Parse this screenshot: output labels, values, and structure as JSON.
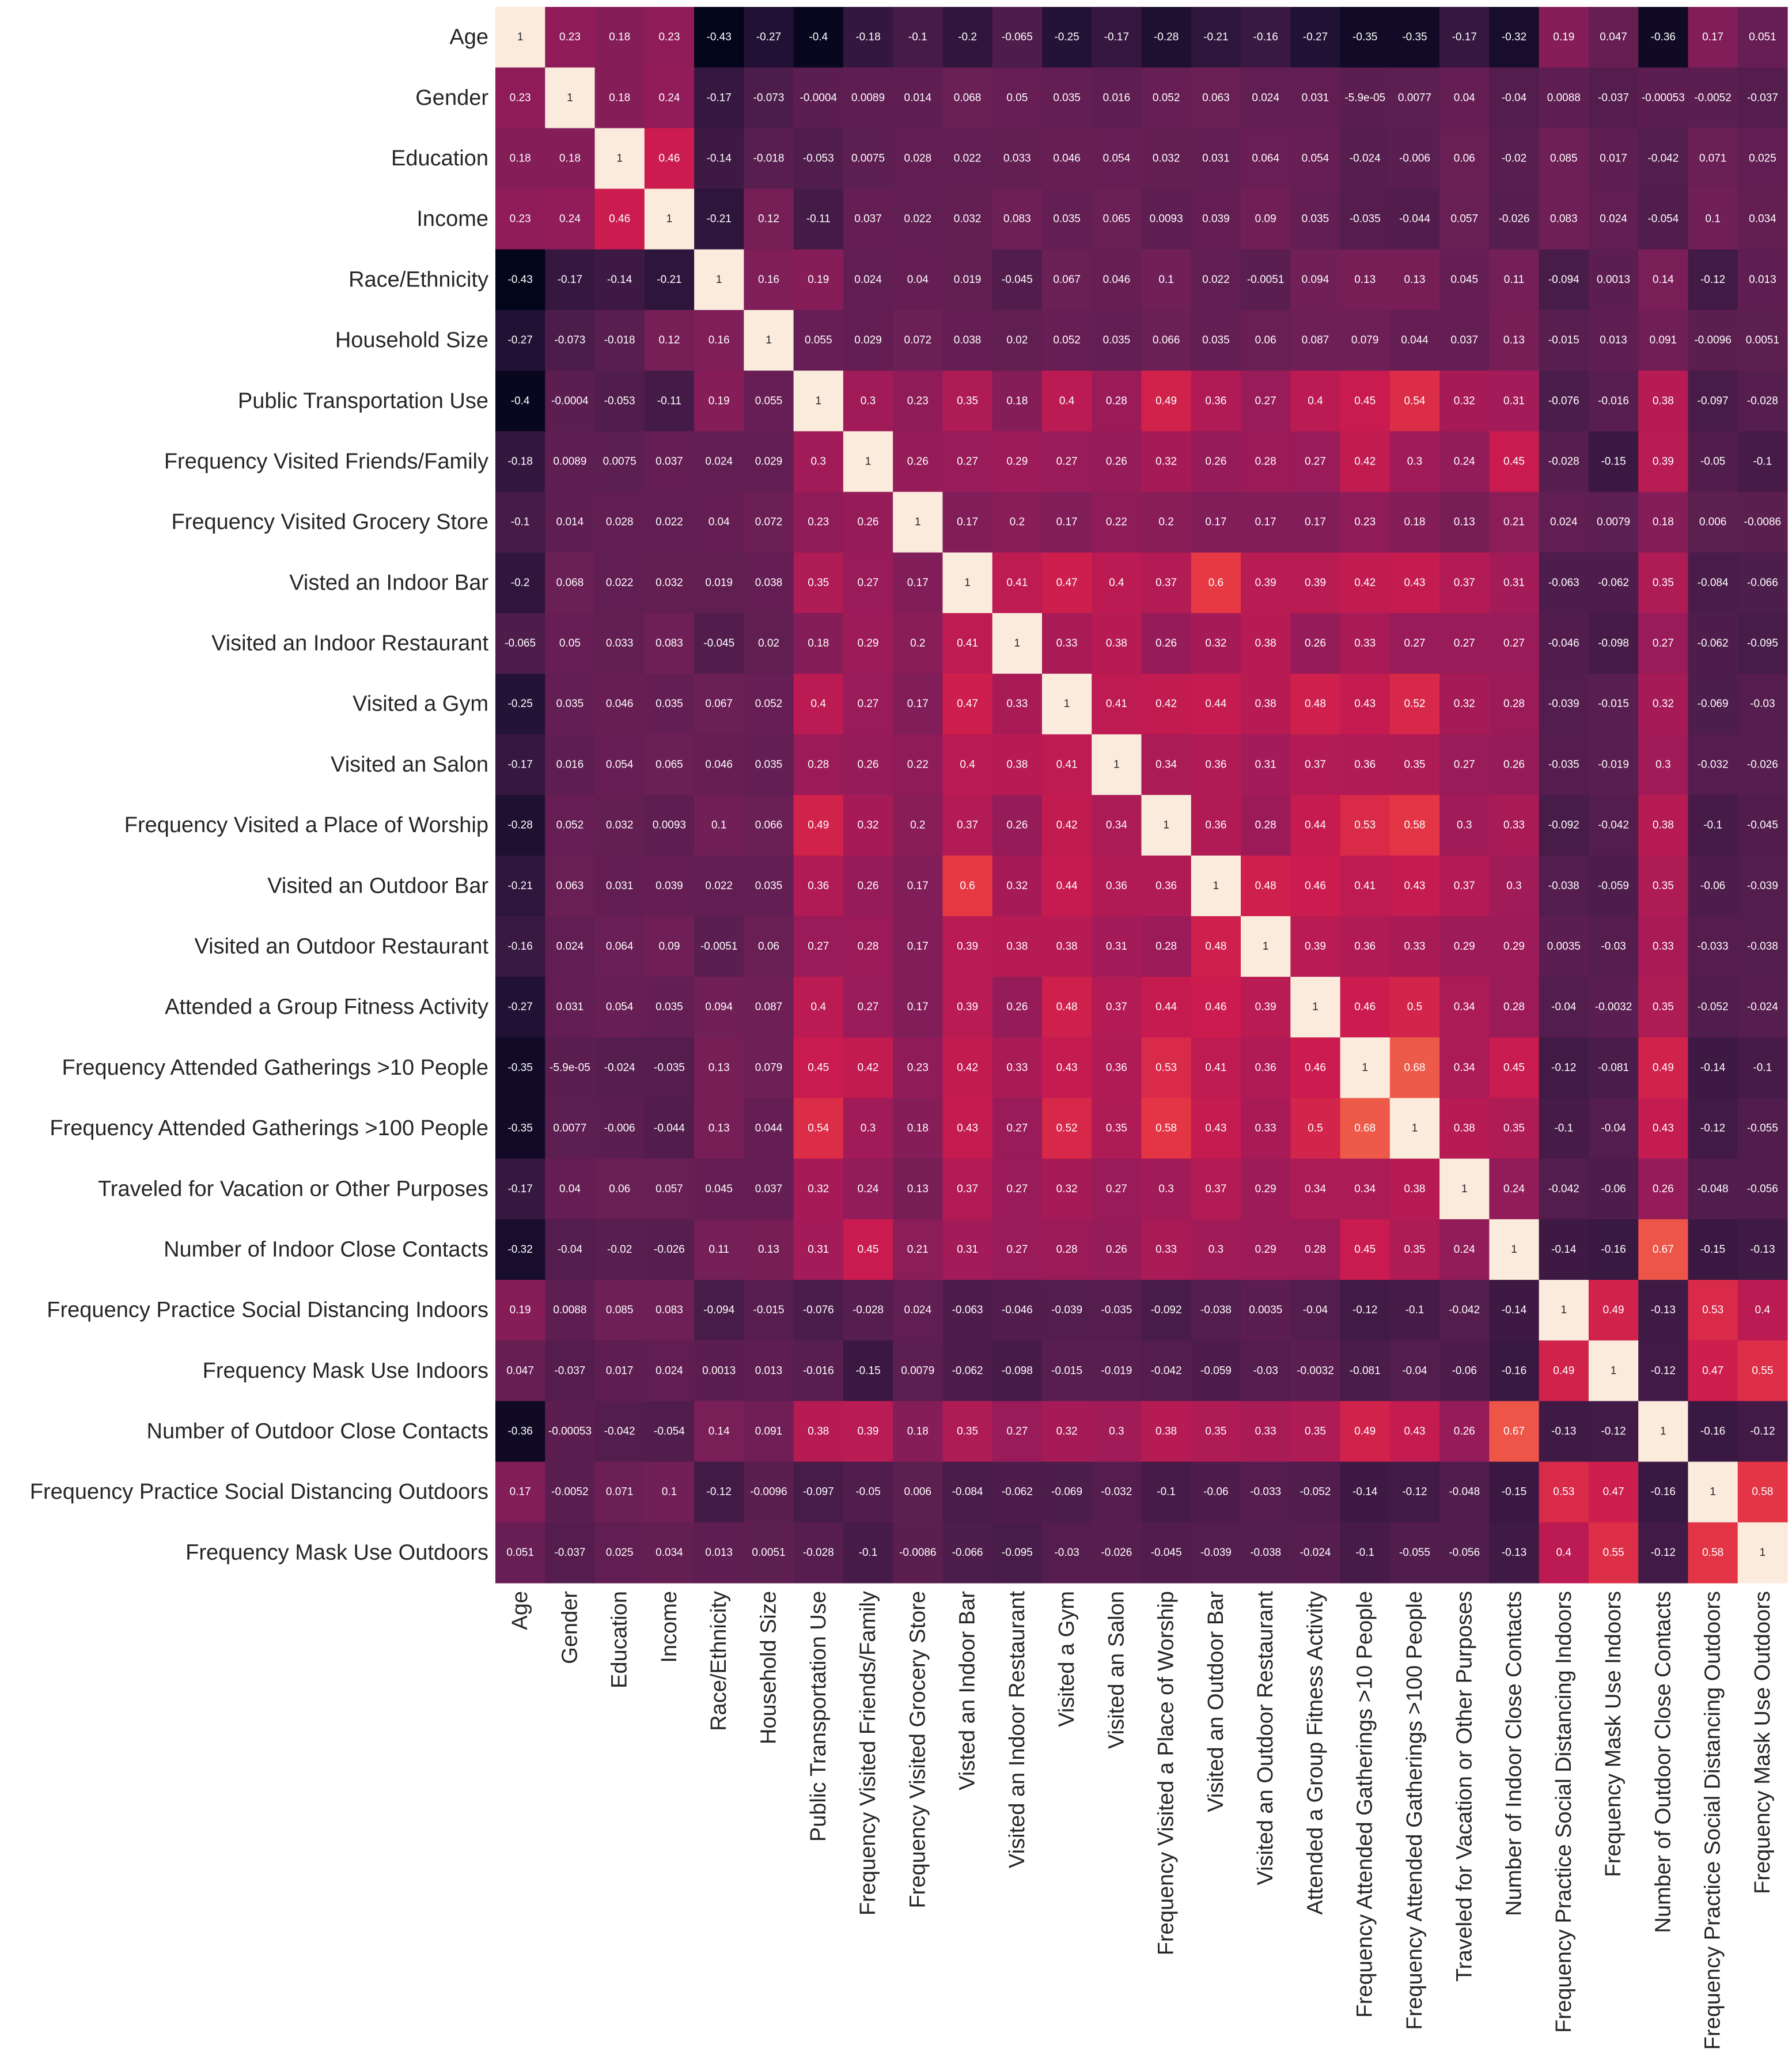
{
  "chart_data": {
    "type": "heatmap",
    "title": "",
    "xlabel": "",
    "ylabel": "",
    "colorbar": "none",
    "vmin": -0.43,
    "vmax": 1,
    "colormap": "rocket",
    "labels": [
      "Age",
      "Gender",
      "Education",
      "Income",
      "Race/Ethnicity",
      "Household Size",
      "Public Transportation Use",
      "Frequency Visited Friends/Family",
      "Frequency Visited Grocery Store",
      "Visted an Indoor Bar",
      "Visited an Indoor Restaurant",
      "Visited a Gym",
      "Visited an Salon",
      "Frequency Visited a Place of Worship",
      "Visited an Outdoor Bar",
      "Visited an Outdoor Restaurant",
      "Attended a Group Fitness Activity",
      "Frequency Attended Gatherings >10 People",
      "Frequency Attended Gatherings >100 People",
      "Traveled for Vacation or Other Purposes",
      "Number of Indoor Close Contacts",
      "Frequency Practice Social Distancing Indoors",
      "Frequency Mask Use Indoors",
      "Number of Outdoor Close Contacts",
      "Frequency Practice Social Distancing Outdoors",
      "Frequency Mask Use Outdoors"
    ],
    "values": [
      [
        "1",
        "0.23",
        "0.18",
        "0.23",
        "-0.43",
        "-0.27",
        "-0.4",
        "-0.18",
        "-0.1",
        "-0.2",
        "-0.065",
        "-0.25",
        "-0.17",
        "-0.28",
        "-0.21",
        "-0.16",
        "-0.27",
        "-0.35",
        "-0.35",
        "-0.17",
        "-0.32",
        "0.19",
        "0.047",
        "-0.36",
        "0.17",
        "0.051"
      ],
      [
        "0.23",
        "1",
        "0.18",
        "0.24",
        "-0.17",
        "-0.073",
        "-0.0004",
        "0.0089",
        "0.014",
        "0.068",
        "0.05",
        "0.035",
        "0.016",
        "0.052",
        "0.063",
        "0.024",
        "0.031",
        "-5.9e-05",
        "0.0077",
        "0.04",
        "-0.04",
        "0.0088",
        "-0.037",
        "-0.00053",
        "-0.0052",
        "-0.037"
      ],
      [
        "0.18",
        "0.18",
        "1",
        "0.46",
        "-0.14",
        "-0.018",
        "-0.053",
        "0.0075",
        "0.028",
        "0.022",
        "0.033",
        "0.046",
        "0.054",
        "0.032",
        "0.031",
        "0.064",
        "0.054",
        "-0.024",
        "-0.006",
        "0.06",
        "-0.02",
        "0.085",
        "0.017",
        "-0.042",
        "0.071",
        "0.025"
      ],
      [
        "0.23",
        "0.24",
        "0.46",
        "1",
        "-0.21",
        "0.12",
        "-0.11",
        "0.037",
        "0.022",
        "0.032",
        "0.083",
        "0.035",
        "0.065",
        "0.0093",
        "0.039",
        "0.09",
        "0.035",
        "-0.035",
        "-0.044",
        "0.057",
        "-0.026",
        "0.083",
        "0.024",
        "-0.054",
        "0.1",
        "0.034"
      ],
      [
        "-0.43",
        "-0.17",
        "-0.14",
        "-0.21",
        "1",
        "0.16",
        "0.19",
        "0.024",
        "0.04",
        "0.019",
        "-0.045",
        "0.067",
        "0.046",
        "0.1",
        "0.022",
        "-0.0051",
        "0.094",
        "0.13",
        "0.13",
        "0.045",
        "0.11",
        "-0.094",
        "0.0013",
        "0.14",
        "-0.12",
        "0.013"
      ],
      [
        "-0.27",
        "-0.073",
        "-0.018",
        "0.12",
        "0.16",
        "1",
        "0.055",
        "0.029",
        "0.072",
        "0.038",
        "0.02",
        "0.052",
        "0.035",
        "0.066",
        "0.035",
        "0.06",
        "0.087",
        "0.079",
        "0.044",
        "0.037",
        "0.13",
        "-0.015",
        "0.013",
        "0.091",
        "-0.0096",
        "0.0051"
      ],
      [
        "-0.4",
        "-0.0004",
        "-0.053",
        "-0.11",
        "0.19",
        "0.055",
        "1",
        "0.3",
        "0.23",
        "0.35",
        "0.18",
        "0.4",
        "0.28",
        "0.49",
        "0.36",
        "0.27",
        "0.4",
        "0.45",
        "0.54",
        "0.32",
        "0.31",
        "-0.076",
        "-0.016",
        "0.38",
        "-0.097",
        "-0.028"
      ],
      [
        "-0.18",
        "0.0089",
        "0.0075",
        "0.037",
        "0.024",
        "0.029",
        "0.3",
        "1",
        "0.26",
        "0.27",
        "0.29",
        "0.27",
        "0.26",
        "0.32",
        "0.26",
        "0.28",
        "0.27",
        "0.42",
        "0.3",
        "0.24",
        "0.45",
        "-0.028",
        "-0.15",
        "0.39",
        "-0.05",
        "-0.1"
      ],
      [
        "-0.1",
        "0.014",
        "0.028",
        "0.022",
        "0.04",
        "0.072",
        "0.23",
        "0.26",
        "1",
        "0.17",
        "0.2",
        "0.17",
        "0.22",
        "0.2",
        "0.17",
        "0.17",
        "0.17",
        "0.23",
        "0.18",
        "0.13",
        "0.21",
        "0.024",
        "0.0079",
        "0.18",
        "0.006",
        "-0.0086"
      ],
      [
        "-0.2",
        "0.068",
        "0.022",
        "0.032",
        "0.019",
        "0.038",
        "0.35",
        "0.27",
        "0.17",
        "1",
        "0.41",
        "0.47",
        "0.4",
        "0.37",
        "0.6",
        "0.39",
        "0.39",
        "0.42",
        "0.43",
        "0.37",
        "0.31",
        "-0.063",
        "-0.062",
        "0.35",
        "-0.084",
        "-0.066"
      ],
      [
        "-0.065",
        "0.05",
        "0.033",
        "0.083",
        "-0.045",
        "0.02",
        "0.18",
        "0.29",
        "0.2",
        "0.41",
        "1",
        "0.33",
        "0.38",
        "0.26",
        "0.32",
        "0.38",
        "0.26",
        "0.33",
        "0.27",
        "0.27",
        "0.27",
        "-0.046",
        "-0.098",
        "0.27",
        "-0.062",
        "-0.095"
      ],
      [
        "-0.25",
        "0.035",
        "0.046",
        "0.035",
        "0.067",
        "0.052",
        "0.4",
        "0.27",
        "0.17",
        "0.47",
        "0.33",
        "1",
        "0.41",
        "0.42",
        "0.44",
        "0.38",
        "0.48",
        "0.43",
        "0.52",
        "0.32",
        "0.28",
        "-0.039",
        "-0.015",
        "0.32",
        "-0.069",
        "-0.03"
      ],
      [
        "-0.17",
        "0.016",
        "0.054",
        "0.065",
        "0.046",
        "0.035",
        "0.28",
        "0.26",
        "0.22",
        "0.4",
        "0.38",
        "0.41",
        "1",
        "0.34",
        "0.36",
        "0.31",
        "0.37",
        "0.36",
        "0.35",
        "0.27",
        "0.26",
        "-0.035",
        "-0.019",
        "0.3",
        "-0.032",
        "-0.026"
      ],
      [
        "-0.28",
        "0.052",
        "0.032",
        "0.0093",
        "0.1",
        "0.066",
        "0.49",
        "0.32",
        "0.2",
        "0.37",
        "0.26",
        "0.42",
        "0.34",
        "1",
        "0.36",
        "0.28",
        "0.44",
        "0.53",
        "0.58",
        "0.3",
        "0.33",
        "-0.092",
        "-0.042",
        "0.38",
        "-0.1",
        "-0.045"
      ],
      [
        "-0.21",
        "0.063",
        "0.031",
        "0.039",
        "0.022",
        "0.035",
        "0.36",
        "0.26",
        "0.17",
        "0.6",
        "0.32",
        "0.44",
        "0.36",
        "0.36",
        "1",
        "0.48",
        "0.46",
        "0.41",
        "0.43",
        "0.37",
        "0.3",
        "-0.038",
        "-0.059",
        "0.35",
        "-0.06",
        "-0.039"
      ],
      [
        "-0.16",
        "0.024",
        "0.064",
        "0.09",
        "-0.0051",
        "0.06",
        "0.27",
        "0.28",
        "0.17",
        "0.39",
        "0.38",
        "0.38",
        "0.31",
        "0.28",
        "0.48",
        "1",
        "0.39",
        "0.36",
        "0.33",
        "0.29",
        "0.29",
        "0.0035",
        "-0.03",
        "0.33",
        "-0.033",
        "-0.038"
      ],
      [
        "-0.27",
        "0.031",
        "0.054",
        "0.035",
        "0.094",
        "0.087",
        "0.4",
        "0.27",
        "0.17",
        "0.39",
        "0.26",
        "0.48",
        "0.37",
        "0.44",
        "0.46",
        "0.39",
        "1",
        "0.46",
        "0.5",
        "0.34",
        "0.28",
        "-0.04",
        "-0.0032",
        "0.35",
        "-0.052",
        "-0.024"
      ],
      [
        "-0.35",
        "-5.9e-05",
        "-0.024",
        "-0.035",
        "0.13",
        "0.079",
        "0.45",
        "0.42",
        "0.23",
        "0.42",
        "0.33",
        "0.43",
        "0.36",
        "0.53",
        "0.41",
        "0.36",
        "0.46",
        "1",
        "0.68",
        "0.34",
        "0.45",
        "-0.12",
        "-0.081",
        "0.49",
        "-0.14",
        "-0.1"
      ],
      [
        "-0.35",
        "0.0077",
        "-0.006",
        "-0.044",
        "0.13",
        "0.044",
        "0.54",
        "0.3",
        "0.18",
        "0.43",
        "0.27",
        "0.52",
        "0.35",
        "0.58",
        "0.43",
        "0.33",
        "0.5",
        "0.68",
        "1",
        "0.38",
        "0.35",
        "-0.1",
        "-0.04",
        "0.43",
        "-0.12",
        "-0.055"
      ],
      [
        "-0.17",
        "0.04",
        "0.06",
        "0.057",
        "0.045",
        "0.037",
        "0.32",
        "0.24",
        "0.13",
        "0.37",
        "0.27",
        "0.32",
        "0.27",
        "0.3",
        "0.37",
        "0.29",
        "0.34",
        "0.34",
        "0.38",
        "1",
        "0.24",
        "-0.042",
        "-0.06",
        "0.26",
        "-0.048",
        "-0.056"
      ],
      [
        "-0.32",
        "-0.04",
        "-0.02",
        "-0.026",
        "0.11",
        "0.13",
        "0.31",
        "0.45",
        "0.21",
        "0.31",
        "0.27",
        "0.28",
        "0.26",
        "0.33",
        "0.3",
        "0.29",
        "0.28",
        "0.45",
        "0.35",
        "0.24",
        "1",
        "-0.14",
        "-0.16",
        "0.67",
        "-0.15",
        "-0.13"
      ],
      [
        "0.19",
        "0.0088",
        "0.085",
        "0.083",
        "-0.094",
        "-0.015",
        "-0.076",
        "-0.028",
        "0.024",
        "-0.063",
        "-0.046",
        "-0.039",
        "-0.035",
        "-0.092",
        "-0.038",
        "0.0035",
        "-0.04",
        "-0.12",
        "-0.1",
        "-0.042",
        "-0.14",
        "1",
        "0.49",
        "-0.13",
        "0.53",
        "0.4"
      ],
      [
        "0.047",
        "-0.037",
        "0.017",
        "0.024",
        "0.0013",
        "0.013",
        "-0.016",
        "-0.15",
        "0.0079",
        "-0.062",
        "-0.098",
        "-0.015",
        "-0.019",
        "-0.042",
        "-0.059",
        "-0.03",
        "-0.0032",
        "-0.081",
        "-0.04",
        "-0.06",
        "-0.16",
        "0.49",
        "1",
        "-0.12",
        "0.47",
        "0.55"
      ],
      [
        "-0.36",
        "-0.00053",
        "-0.042",
        "-0.054",
        "0.14",
        "0.091",
        "0.38",
        "0.39",
        "0.18",
        "0.35",
        "0.27",
        "0.32",
        "0.3",
        "0.38",
        "0.35",
        "0.33",
        "0.35",
        "0.49",
        "0.43",
        "0.26",
        "0.67",
        "-0.13",
        "-0.12",
        "1",
        "-0.16",
        "-0.12"
      ],
      [
        "0.17",
        "-0.0052",
        "0.071",
        "0.1",
        "-0.12",
        "-0.0096",
        "-0.097",
        "-0.05",
        "0.006",
        "-0.084",
        "-0.062",
        "-0.069",
        "-0.032",
        "-0.1",
        "-0.06",
        "-0.033",
        "-0.052",
        "-0.14",
        "-0.12",
        "-0.048",
        "-0.15",
        "0.53",
        "0.47",
        "-0.16",
        "1",
        "0.58"
      ],
      [
        "0.051",
        "-0.037",
        "0.025",
        "0.034",
        "0.013",
        "0.0051",
        "-0.028",
        "-0.1",
        "-0.0086",
        "-0.066",
        "-0.095",
        "-0.03",
        "-0.026",
        "-0.045",
        "-0.039",
        "-0.038",
        "-0.024",
        "-0.1",
        "-0.055",
        "-0.056",
        "-0.13",
        "0.4",
        "0.55",
        "-0.12",
        "0.58",
        "1"
      ]
    ]
  }
}
